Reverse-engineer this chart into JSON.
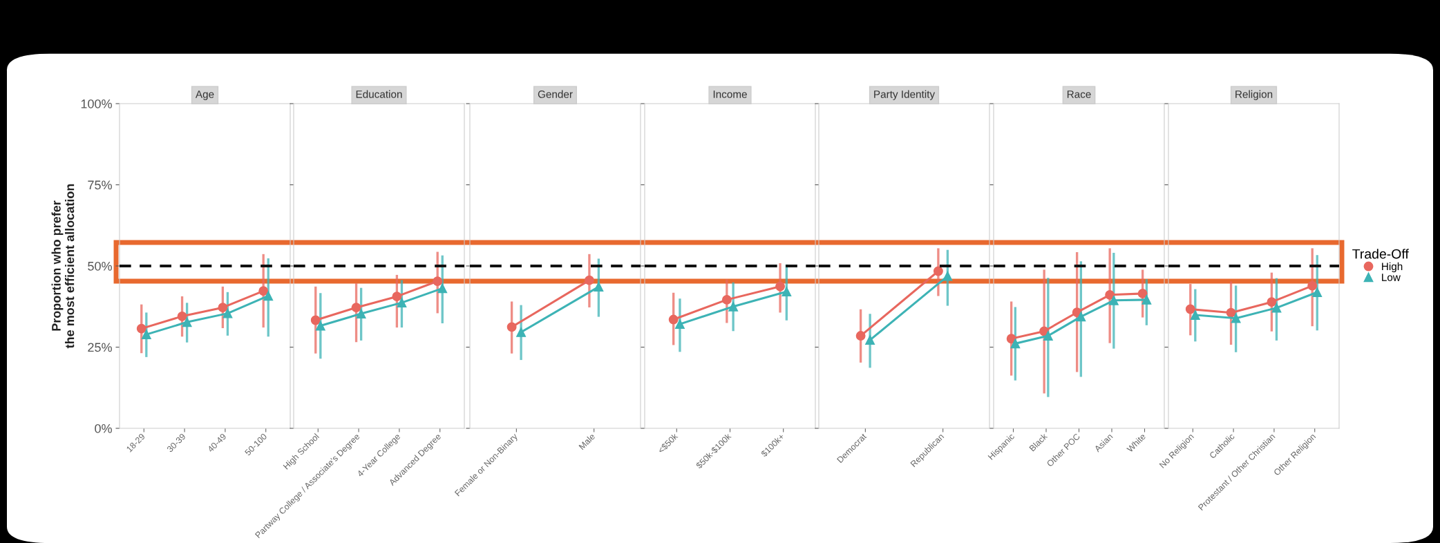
{
  "chart_data": [
    {
      "type": "line",
      "title": "Age",
      "ylabel": "Proportion who prefer\nthe most efficient allocation",
      "categories": [
        "18-29",
        "30-39",
        "40-49",
        "50-100"
      ],
      "series": [
        {
          "color": "#e8675e",
          "marker": "circle",
          "values": [
            30.7,
            34.5,
            37.2,
            42.3
          ],
          "errors": [
            [
              23.5,
              37.8
            ],
            [
              28.6,
              40.3
            ],
            [
              31.2,
              43.3
            ],
            [
              31.4,
              53.3
            ]
          ]
        },
        {
          "color": "#3db3b5",
          "marker": "triangle",
          "values": [
            28.9,
            32.7,
            35.4,
            40.8
          ],
          "errors": [
            [
              22.3,
              35.3
            ],
            [
              26.8,
              38.3
            ],
            [
              28.9,
              41.6
            ],
            [
              28.6,
              52.0
            ]
          ]
        }
      ],
      "ylim": [
        0,
        100
      ],
      "yticks": [
        {
          "value": 0,
          "label": "0%"
        },
        {
          "value": 25,
          "label": "25%"
        },
        {
          "value": 50,
          "label": "50%"
        },
        {
          "value": 75,
          "label": "75%"
        },
        {
          "value": 100,
          "label": "100%"
        }
      ],
      "ref_lines": [
        {
          "axis": "y",
          "value": 50,
          "color": "#111111",
          "line_style": "dashed"
        }
      ],
      "grid": false,
      "line_style": "solid"
    },
    {
      "type": "line",
      "title": "Education",
      "categories": [
        "High School",
        "Partway College / Associate's Degree",
        "4-Year College",
        "Advanced Degree"
      ],
      "series": [
        {
          "color": "#e8675e",
          "marker": "circle",
          "values": [
            33.3,
            37.2,
            40.6,
            45.3
          ],
          "errors": [
            [
              23.4,
              43.3
            ],
            [
              26.9,
              44.3
            ],
            [
              31.4,
              46.9
            ],
            [
              35.8,
              54.0
            ]
          ]
        },
        {
          "color": "#3db3b5",
          "marker": "triangle",
          "values": [
            31.6,
            35.3,
            38.7,
            43.1
          ],
          "errors": [
            [
              21.8,
              41.3
            ],
            [
              27.4,
              42.9
            ],
            [
              31.4,
              45.3
            ],
            [
              32.7,
              52.9
            ]
          ]
        }
      ],
      "ylim": [
        0,
        100
      ],
      "tick_labels": "x",
      "ref_lines": [
        {
          "axis": "y",
          "value": 50,
          "color": "#111111",
          "line_style": "dashed"
        }
      ],
      "grid": false,
      "line_style": "solid"
    },
    {
      "type": "line",
      "title": "Gender",
      "categories": [
        "Female or Non-Binary",
        "Male"
      ],
      "series": [
        {
          "color": "#e8675e",
          "marker": "circle",
          "values": [
            31.2,
            45.6
          ],
          "errors": [
            [
              23.4,
              38.7
            ],
            [
              37.6,
              53.3
            ]
          ]
        },
        {
          "color": "#3db3b5",
          "marker": "triangle",
          "values": [
            29.6,
            43.6
          ],
          "errors": [
            [
              21.4,
              37.6
            ],
            [
              34.7,
              51.9
            ]
          ]
        }
      ],
      "ylim": [
        0,
        100
      ],
      "tick_labels": "x",
      "ref_lines": [
        {
          "axis": "y",
          "value": 50,
          "color": "#111111",
          "line_style": "dashed"
        }
      ],
      "grid": false,
      "line_style": "solid"
    },
    {
      "type": "line",
      "title": "Income",
      "categories": [
        "<$50k",
        "$50k-$100k",
        "$100k+"
      ],
      "series": [
        {
          "color": "#e8675e",
          "marker": "circle",
          "values": [
            33.5,
            39.6,
            43.7
          ],
          "errors": [
            [
              26.0,
              41.4
            ],
            [
              32.8,
              45.5
            ],
            [
              36.0,
              50.5
            ]
          ]
        },
        {
          "color": "#3db3b5",
          "marker": "triangle",
          "values": [
            32.1,
            37.5,
            42.1
          ],
          "errors": [
            [
              23.9,
              39.6
            ],
            [
              30.3,
              44.6
            ],
            [
              33.6,
              50.1
            ]
          ]
        }
      ],
      "ylim": [
        0,
        100
      ],
      "tick_labels": "x",
      "ref_lines": [
        {
          "axis": "y",
          "value": 50,
          "color": "#111111",
          "line_style": "dashed"
        }
      ],
      "grid": false,
      "line_style": "solid"
    },
    {
      "type": "line",
      "title": "Party Identity",
      "categories": [
        "Democrat",
        "Republican"
      ],
      "series": [
        {
          "color": "#e8675e",
          "marker": "circle",
          "values": [
            28.5,
            48.4
          ],
          "errors": [
            [
              20.6,
              36.3
            ],
            [
              41.1,
              55.1
            ]
          ]
        },
        {
          "color": "#3db3b5",
          "marker": "triangle",
          "values": [
            27.2,
            46.9
          ],
          "errors": [
            [
              19.0,
              34.9
            ],
            [
              38.1,
              54.6
            ]
          ]
        }
      ],
      "ylim": [
        0,
        100
      ],
      "tick_labels": "x",
      "ref_lines": [
        {
          "axis": "y",
          "value": 50,
          "color": "#111111",
          "line_style": "dashed"
        }
      ],
      "grid": false,
      "line_style": "solid"
    },
    {
      "type": "line",
      "title": "Race",
      "categories": [
        "Hispanic",
        "Black",
        "Other POC",
        "Asian",
        "White"
      ],
      "series": [
        {
          "color": "#e8675e",
          "marker": "circle",
          "values": [
            27.6,
            29.9,
            35.7,
            41.1,
            41.5
          ],
          "errors": [
            [
              16.6,
              38.7
            ],
            [
              11.1,
              48.5
            ],
            [
              17.7,
              53.9
            ],
            [
              26.6,
              55.1
            ],
            [
              34.5,
              48.5
            ]
          ]
        },
        {
          "color": "#3db3b5",
          "marker": "triangle",
          "values": [
            26.1,
            28.5,
            34.4,
            39.4,
            39.6
          ],
          "errors": [
            [
              15.1,
              37.0
            ],
            [
              10.0,
              46.0
            ],
            [
              16.2,
              51.1
            ],
            [
              24.9,
              53.7
            ],
            [
              32.1,
              45.6
            ]
          ]
        }
      ],
      "ylim": [
        0,
        100
      ],
      "tick_labels": "x",
      "ref_lines": [
        {
          "axis": "y",
          "value": 50,
          "color": "#111111",
          "line_style": "dashed"
        }
      ],
      "grid": false,
      "line_style": "solid"
    },
    {
      "type": "line",
      "title": "Religion",
      "categories": [
        "No Religion",
        "Catholic",
        "Protestant / Other Christian",
        "Other Religion"
      ],
      "series": [
        {
          "name": "High",
          "color": "#e8675e",
          "marker": "circle",
          "values": [
            36.7,
            35.6,
            38.9,
            43.9
          ],
          "errors": [
            [
              29.0,
              44.1
            ],
            [
              26.1,
              44.9
            ],
            [
              30.2,
              47.6
            ],
            [
              31.8,
              55.1
            ]
          ]
        },
        {
          "name": "Low",
          "color": "#3db3b5",
          "marker": "triangle",
          "values": [
            34.9,
            33.9,
            37.1,
            41.9
          ],
          "errors": [
            [
              27.1,
              42.5
            ],
            [
              23.8,
              43.6
            ],
            [
              27.4,
              45.9
            ],
            [
              30.5,
              53.0
            ]
          ]
        }
      ],
      "ylim": [
        0,
        100
      ],
      "tick_labels": "x",
      "ref_lines": [
        {
          "axis": "y",
          "value": 50,
          "color": "#111111",
          "line_style": "dashed"
        }
      ],
      "grid": false,
      "line_style": "solid",
      "legend": "right",
      "legend_title": "Trade-Off"
    }
  ]
}
